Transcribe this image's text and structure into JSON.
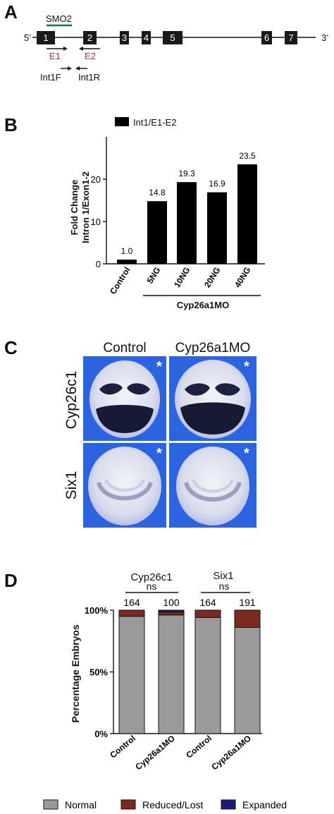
{
  "panels": {
    "a": {
      "label": "A",
      "five_prime": "5’",
      "three_prime": "3’",
      "morpholino": "SMO2",
      "exons": [
        "1",
        "2",
        "3",
        "4",
        "5",
        "6",
        "7"
      ],
      "primer_e1": "E1",
      "primer_e2": "E2",
      "primer_int1f": "Int1F",
      "primer_int1r": "Int1R",
      "primer_color": "#e0202a",
      "morpholino_color": "#1f6e45"
    },
    "b": {
      "label": "B",
      "legend": "Int1/E1-E2",
      "ylabel_line1": "Fold Change",
      "ylabel_line2": "Intron 1/Exon1-2",
      "group_label": "Cyp26a1MO"
    },
    "c": {
      "label": "C",
      "col_control": "Control",
      "col_mo": "Cyp26a1MO",
      "row_cyp26c1": "Cyp26c1",
      "row_six1": "Six1",
      "star": "*",
      "bg_color": "#2b63e0"
    },
    "d": {
      "label": "D",
      "group1": "Cyp26c1",
      "group2": "Six1",
      "sig1": "ns",
      "sig2": "ns",
      "ylabel": "Percentage Embryos",
      "legend": [
        "Normal",
        "Reduced/Lost",
        "Expanded"
      ],
      "colors": {
        "Normal": "#9a9a9a",
        "Reduced/Lost": "#7a2a1e",
        "Expanded": "#1e1a7a"
      }
    }
  },
  "chart_data": [
    {
      "type": "bar",
      "panel": "B",
      "categories": [
        "Control",
        "5NG",
        "10NG",
        "20NG",
        "40NG"
      ],
      "values": [
        1.0,
        14.8,
        19.3,
        16.9,
        23.5
      ],
      "data_labels": [
        "1.0",
        "14.8",
        "19.3",
        "16.9",
        "23.5"
      ],
      "ylim": [
        0,
        30
      ],
      "yticks": [
        "0",
        "10",
        "20"
      ],
      "series": [
        {
          "name": "Int1/E1-E2",
          "values": [
            1.0,
            14.8,
            19.3,
            16.9,
            23.5
          ]
        }
      ]
    },
    {
      "type": "bar",
      "panel": "D",
      "stacked": true,
      "categories": [
        "Control",
        "Cyp26a1MO",
        "Control",
        "Cyp26a1MO"
      ],
      "n": [
        "164",
        "100",
        "164",
        "191"
      ],
      "ylim": [
        0,
        100
      ],
      "yticks": [
        "0%",
        "50%",
        "100%"
      ],
      "series": [
        {
          "name": "Normal",
          "values": [
            95,
            96,
            94,
            86
          ]
        },
        {
          "name": "Reduced/Lost",
          "values": [
            5,
            2.5,
            6,
            14
          ]
        },
        {
          "name": "Expanded",
          "values": [
            0,
            1.5,
            0,
            0
          ]
        }
      ]
    }
  ]
}
